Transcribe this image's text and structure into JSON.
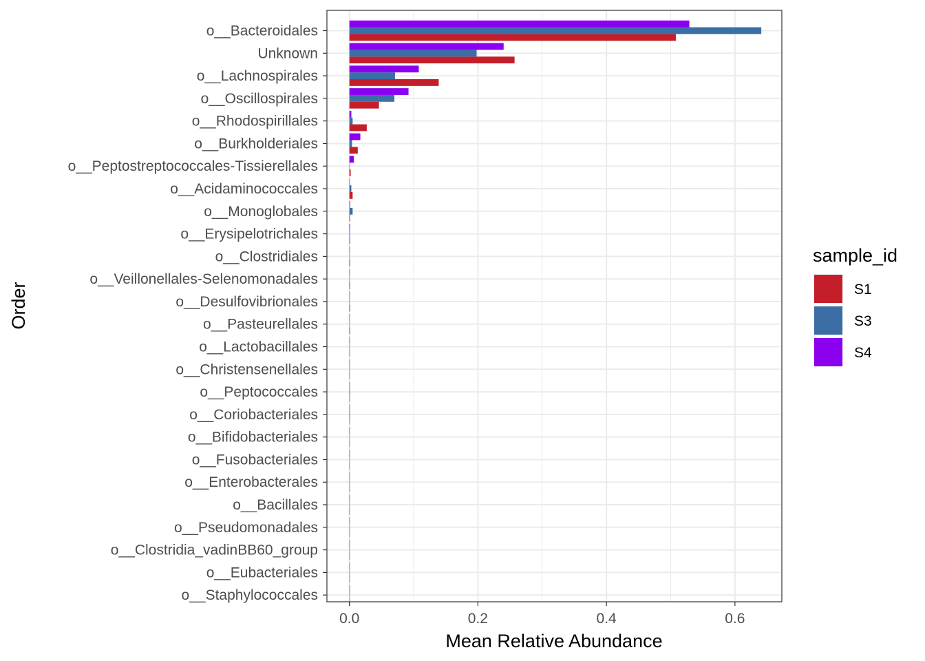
{
  "chart_data": {
    "type": "bar",
    "orientation": "horizontal",
    "xlabel": "Mean Relative Abundance",
    "ylabel": "Order",
    "xlim": [
      -0.035,
      0.673
    ],
    "xticks": [
      0.0,
      0.2,
      0.4,
      0.6
    ],
    "xtick_labels": [
      "0.0",
      "0.2",
      "0.4",
      "0.6"
    ],
    "grid": true,
    "legend": {
      "title": "sample_id",
      "placement": "right"
    },
    "categories": [
      "o__Bacteroidales",
      "Unknown",
      "o__Lachnospirales",
      "o__Oscillospirales",
      "o__Rhodospirillales",
      "o__Burkholderiales",
      "o__Peptostreptococcales-Tissierellales",
      "o__Acidaminococcales",
      "o__Monoglobales",
      "o__Erysipelotrichales",
      "o__Clostridiales",
      "o__Veillonellales-Selenomonadales",
      "o__Desulfovibrionales",
      "o__Pasteurellales",
      "o__Lactobacillales",
      "o__Christensenellales",
      "o__Peptococcales",
      "o__Coriobacteriales",
      "o__Bifidobacteriales",
      "o__Fusobacteriales",
      "o__Enterobacterales",
      "o__Bacillales",
      "o__Pseudomonadales",
      "o__Clostridia_vadinBB60_group",
      "o__Eubacteriales",
      "o__Staphylococcales"
    ],
    "series": [
      {
        "name": "S1",
        "color": "#C41E2A",
        "values": [
          0.508,
          0.257,
          0.139,
          0.046,
          0.027,
          0.013,
          0.002,
          0.005,
          0.001,
          0.001,
          0.001,
          0.001,
          0.001,
          0.001,
          0.0005,
          0.0005,
          0.0005,
          0.0003,
          0.0003,
          0.0003,
          0.0002,
          0.0002,
          0.0002,
          0.0001,
          0.0001,
          0.0001
        ]
      },
      {
        "name": "S3",
        "color": "#3A6EA5",
        "values": [
          0.641,
          0.198,
          0.071,
          0.07,
          0.005,
          0.004,
          0.0005,
          0.003,
          0.005,
          0.001,
          0.0005,
          0.0005,
          0.0005,
          0.0005,
          0.0005,
          0.0005,
          0.001,
          0.001,
          0.0005,
          0.0003,
          0.0002,
          0.0002,
          0.0002,
          0.0001,
          0.0001,
          0.0001
        ]
      },
      {
        "name": "S4",
        "color": "#8B00EE",
        "values": [
          0.529,
          0.24,
          0.108,
          0.092,
          0.003,
          0.017,
          0.007,
          0.0005,
          0.001,
          0.001,
          0.0005,
          0.0005,
          0.0005,
          0.0005,
          0.0005,
          0.0005,
          0.0005,
          0.0005,
          0.0005,
          0.0003,
          0.0002,
          0.0002,
          0.0002,
          0.0001,
          0.0001,
          0.0001
        ]
      }
    ]
  }
}
